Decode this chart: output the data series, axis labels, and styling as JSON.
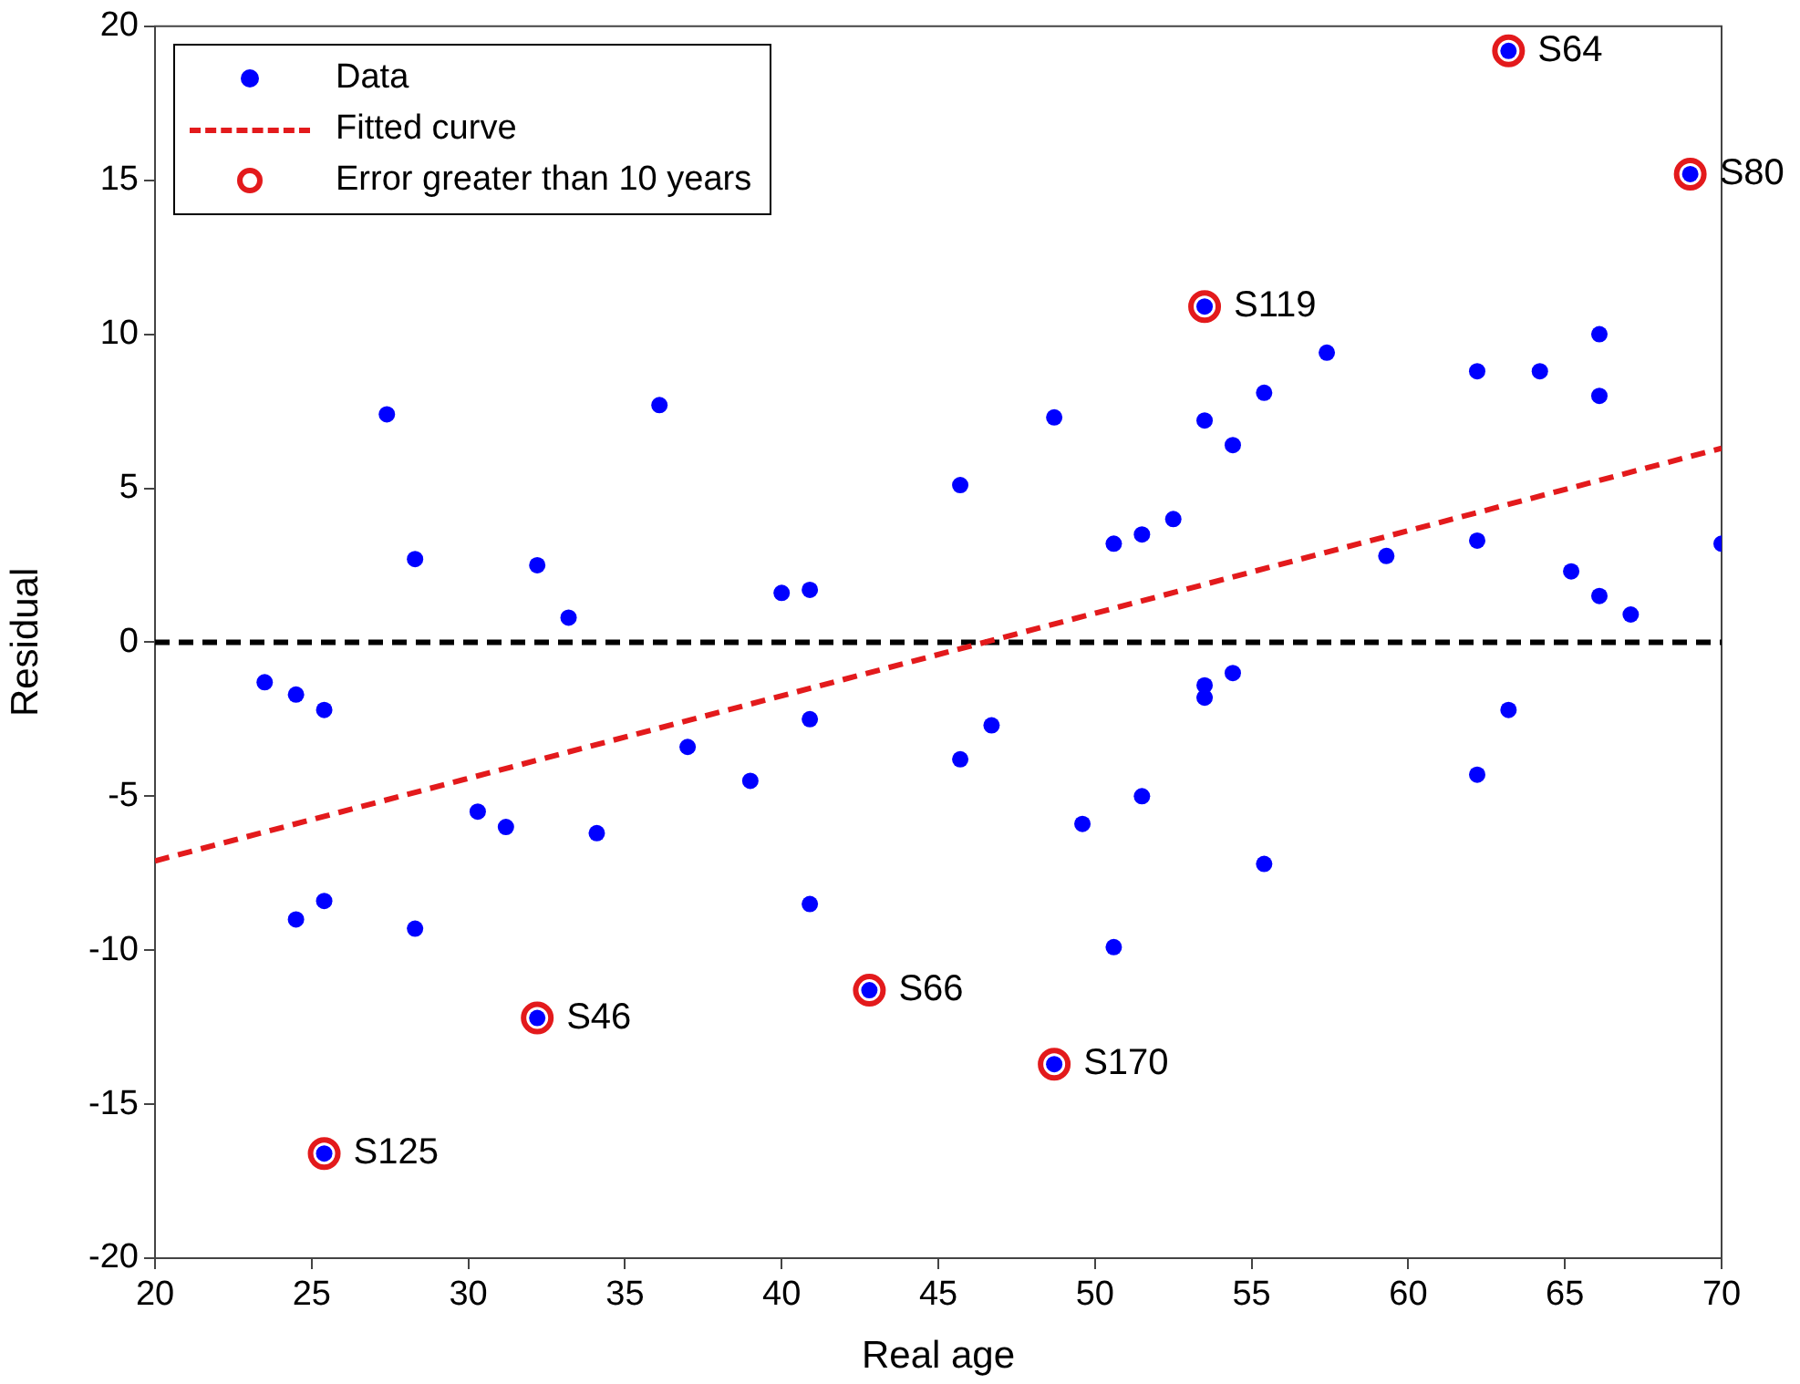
{
  "chart_data": {
    "type": "scatter",
    "xlabel": "Real age",
    "ylabel": "Residual",
    "xlim": [
      20,
      70
    ],
    "xticks": [
      20,
      25,
      30,
      35,
      40,
      45,
      50,
      55,
      60,
      65,
      70
    ],
    "ylim": [
      -20,
      20
    ],
    "yticks": [
      -20,
      -15,
      -10,
      -5,
      0,
      5,
      10,
      15,
      20
    ],
    "grid": false,
    "legend": "top left",
    "series": [
      {
        "name": "Data",
        "marker": "circle",
        "color": "#0000ff",
        "x": [
          23.5,
          24.5,
          25.4,
          24.5,
          25.4,
          27.4,
          28.3,
          28.3,
          30.3,
          31.2,
          32.2,
          33.2,
          34.1,
          36.1,
          37,
          39,
          40,
          40.9,
          40.9,
          40.9,
          32.2,
          25.4,
          42.8,
          45.7,
          45.7,
          46.7,
          48.7,
          48.7,
          49.6,
          50.6,
          50.6,
          51.5,
          51.5,
          52.5,
          53.5,
          53.5,
          53.5,
          53.5,
          54.4,
          54.4,
          55.4,
          55.4,
          57.4,
          59.3,
          62.2,
          62.2,
          62.2,
          63.2,
          63.2,
          64.2,
          65.2,
          66.1,
          66.1,
          66.1,
          67.1,
          69,
          70
        ],
        "values": [
          -1.3,
          -1.7,
          -2.2,
          -9,
          -8.4,
          7.4,
          2.7,
          -9.3,
          -5.5,
          -6,
          2.5,
          0.8,
          -6.2,
          7.7,
          -3.4,
          -4.5,
          1.6,
          1.7,
          -2.5,
          -8.5,
          -12.2,
          -16.6,
          -11.3,
          5.1,
          -3.8,
          -2.7,
          7.3,
          -13.7,
          -5.9,
          3.2,
          -9.9,
          3.5,
          -5,
          4,
          10.9,
          7.2,
          -1.4,
          -1.8,
          6.4,
          -1,
          8.1,
          -7.2,
          9.4,
          2.8,
          8.8,
          3.3,
          -4.3,
          19.2,
          -2.2,
          8.8,
          2.3,
          10,
          8,
          1.5,
          0.9,
          15.2,
          3.2
        ]
      },
      {
        "name": "Fitted curve",
        "type": "line",
        "marker": "none",
        "line_style": "dashed",
        "color": "#e31a1c",
        "x": [
          20,
          70
        ],
        "values": [
          -7.1,
          6.3
        ]
      },
      {
        "name": "Error greater than 10 years",
        "type": "scatter",
        "marker": "circle",
        "color": "#e31a1c",
        "x": [
          25.4,
          32.2,
          42.8,
          48.7,
          53.5,
          63.2,
          69
        ],
        "values": [
          -16.6,
          -12.2,
          -11.3,
          -13.7,
          10.9,
          19.2,
          15.2
        ]
      }
    ],
    "ref_lines": [
      {
        "axis": "y",
        "value": 0,
        "color": "#000000",
        "line_style": "dashed"
      }
    ],
    "annotations": [
      {
        "text": "S125",
        "x": 25.4,
        "y": -16.6
      },
      {
        "text": "S46",
        "x": 32.2,
        "y": -12.2
      },
      {
        "text": "S66",
        "x": 42.8,
        "y": -11.3
      },
      {
        "text": "S170",
        "x": 48.7,
        "y": -13.7
      },
      {
        "text": "S119",
        "x": 53.5,
        "y": 10.9
      },
      {
        "text": "S64",
        "x": 63.2,
        "y": 19.2
      },
      {
        "text": "S80",
        "x": 69,
        "y": 15.2
      }
    ]
  }
}
